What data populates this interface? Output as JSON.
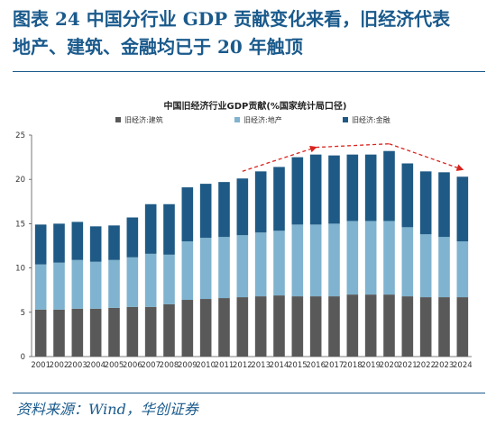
{
  "figure": {
    "title_line1": "图表 24   中国分行业 GDP 贡献变化来看，旧经济代表",
    "title_line2": "地产、建筑、金融均已于 20 年触顶",
    "source": "资料来源：Wind，华创证券"
  },
  "colors": {
    "construction": "#595959",
    "real_estate": "#7fb3cf",
    "finance": "#1e5a85",
    "arrow": "#d9231d",
    "frame": "#1a5a8c"
  },
  "chart_data": {
    "type": "bar",
    "stacked": true,
    "title": "中国旧经济行业GDP贡献(%国家统计局口径)",
    "categories": [
      "2001",
      "2002",
      "2003",
      "2004",
      "2005",
      "2006",
      "2007",
      "2008",
      "2009",
      "2010",
      "2011",
      "2012",
      "2013",
      "2014",
      "2015",
      "2016",
      "2017",
      "2018",
      "2019",
      "2020",
      "2021",
      "2022",
      "2023",
      "2024"
    ],
    "series": [
      {
        "name": "旧经济:建筑",
        "color": "#595959",
        "values": [
          5.3,
          5.3,
          5.4,
          5.4,
          5.5,
          5.6,
          5.6,
          5.9,
          6.4,
          6.5,
          6.6,
          6.7,
          6.8,
          6.9,
          6.8,
          6.8,
          6.8,
          7.0,
          7.0,
          7.0,
          6.8,
          6.7,
          6.7,
          6.7
        ]
      },
      {
        "name": "旧经济:地产",
        "color": "#7fb3cf",
        "values": [
          5.1,
          5.3,
          5.5,
          5.3,
          5.4,
          5.6,
          6.0,
          5.6,
          6.6,
          6.9,
          6.9,
          7.0,
          7.2,
          7.3,
          8.1,
          8.1,
          8.2,
          8.3,
          8.3,
          8.3,
          7.8,
          7.1,
          6.8,
          6.3
        ]
      },
      {
        "name": "旧经济:金融",
        "color": "#1e5a85",
        "values": [
          4.5,
          4.4,
          4.3,
          4.0,
          3.9,
          4.5,
          5.6,
          5.7,
          6.1,
          6.1,
          6.2,
          6.4,
          6.9,
          7.2,
          7.6,
          7.9,
          7.7,
          7.5,
          7.5,
          7.9,
          7.2,
          7.1,
          7.3,
          7.3
        ]
      }
    ],
    "ylim": [
      0,
      25
    ],
    "yticks": [
      "0",
      "5",
      "10",
      "15",
      "20",
      "25"
    ],
    "grid": false,
    "legend_position": "top",
    "annotations": [
      {
        "type": "dashed-arrow",
        "from": "2012",
        "to": "2016",
        "direction": "up"
      },
      {
        "type": "dashed-line",
        "from": "2016",
        "to": "2020",
        "direction": "flat"
      },
      {
        "type": "dashed-arrow",
        "from": "2020",
        "to": "2024",
        "direction": "down"
      }
    ]
  }
}
